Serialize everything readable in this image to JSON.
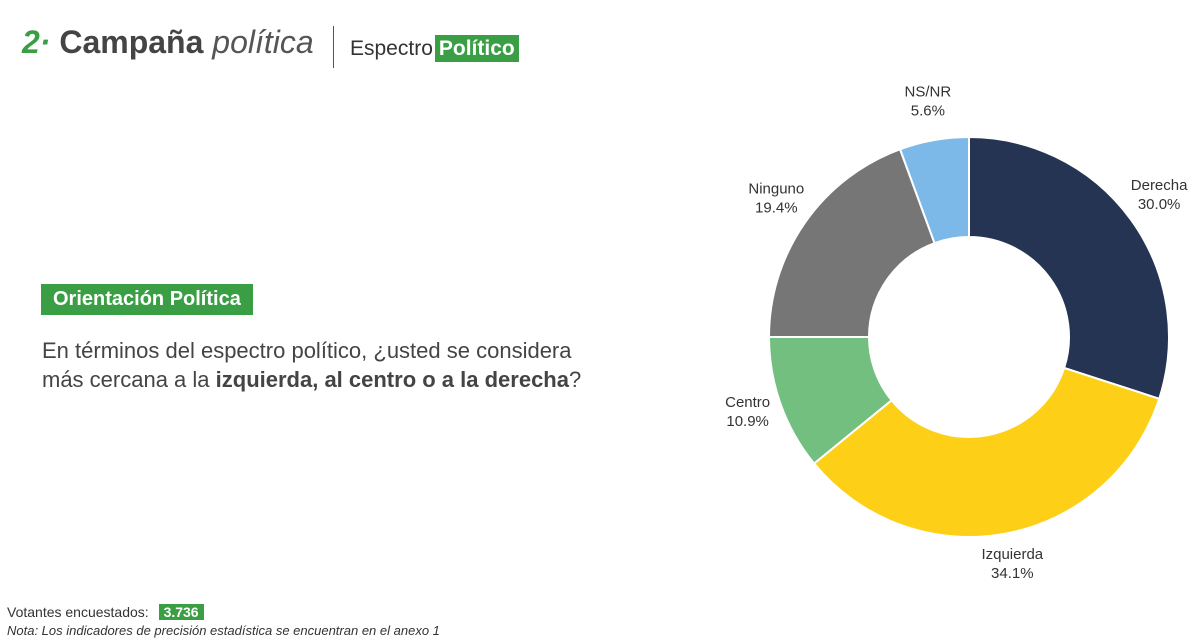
{
  "header": {
    "number": "2·",
    "title": "Campaña",
    "title_italic": "política",
    "section": "Espectro",
    "section_highlight": "Político"
  },
  "question": {
    "tag": "Orientación Política",
    "text_1": "En términos del espectro político, ¿usted se considera más cercana a la ",
    "text_bold": "izquierda, al centro o a la derecha",
    "text_2": "?"
  },
  "chart_data": {
    "type": "donut",
    "categories": [
      "Derecha",
      "Izquierda",
      "Centro",
      "Ninguno",
      "NS/NR"
    ],
    "values": [
      30.0,
      34.1,
      10.9,
      19.4,
      5.6
    ],
    "value_labels": [
      "30.0%",
      "34.1%",
      "10.9%",
      "19.4%",
      "5.6%"
    ],
    "colors": [
      "#243452",
      "#fdd017",
      "#72bf7f",
      "#767676",
      "#7db9e8"
    ]
  },
  "footer": {
    "sample_label": "Votantes encuestados:",
    "sample_value": "3.736",
    "note": "Nota: Los indicadores de precisión estadística se encuentran en el anexo 1"
  }
}
